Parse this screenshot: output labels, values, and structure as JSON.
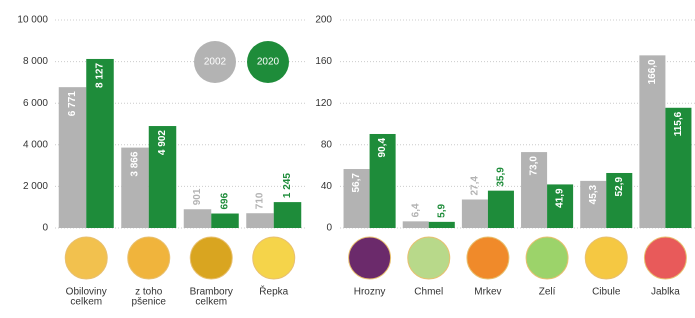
{
  "chart_data": [
    {
      "type": "bar",
      "categories": [
        [
          "Obiloviny",
          "celkem"
        ],
        [
          "z toho",
          "pšenice"
        ],
        [
          "Brambory",
          "celkem"
        ],
        [
          "Řepka"
        ]
      ],
      "series": [
        {
          "name": "2002",
          "color": "#b3b3b3",
          "values": [
            6771,
            3866,
            901,
            710
          ],
          "value_labels": [
            "6 771",
            "3 866",
            "901",
            "710"
          ]
        },
        {
          "name": "2020",
          "color": "#1e8c3a",
          "values": [
            8127,
            4902,
            696,
            1245
          ],
          "value_labels": [
            "8 127",
            "4 902",
            "696",
            "1 245"
          ]
        }
      ],
      "ylim": [
        0,
        10000
      ],
      "yticks": [
        0,
        {
          "value": 2000,
          "label": "2 000"
        },
        {
          "value": 4000,
          "label": "4 000"
        },
        {
          "value": 6000,
          "label": "6 000"
        },
        {
          "value": 8000,
          "label": "8 000"
        },
        {
          "value": 10000,
          "label": "10 000"
        }
      ],
      "grid": true,
      "legend": "top-right"
    },
    {
      "type": "bar",
      "categories": [
        [
          "Hrozny"
        ],
        [
          "Chmel"
        ],
        [
          "Mrkev"
        ],
        [
          "Zelí"
        ],
        [
          "Cibule"
        ],
        [
          "Jablka"
        ]
      ],
      "series": [
        {
          "color": "#b3b3b3",
          "values": [
            56.7,
            6.4,
            27.4,
            73.0,
            45.3,
            166.0
          ],
          "value_labels": [
            "56,7",
            "6,4",
            "27,4",
            "73,0",
            "45,3",
            "166,0"
          ]
        },
        {
          "color": "#1e8c3a",
          "values": [
            90.4,
            5.9,
            35.9,
            41.9,
            52.9,
            115.6
          ],
          "value_labels": [
            "90,4",
            "5,9",
            "35,9",
            "41,9",
            "52,9",
            "115,6"
          ]
        }
      ],
      "ylim": [
        0,
        200
      ],
      "yticks": [
        0,
        40,
        80,
        120,
        160,
        200
      ],
      "grid": true
    }
  ]
}
